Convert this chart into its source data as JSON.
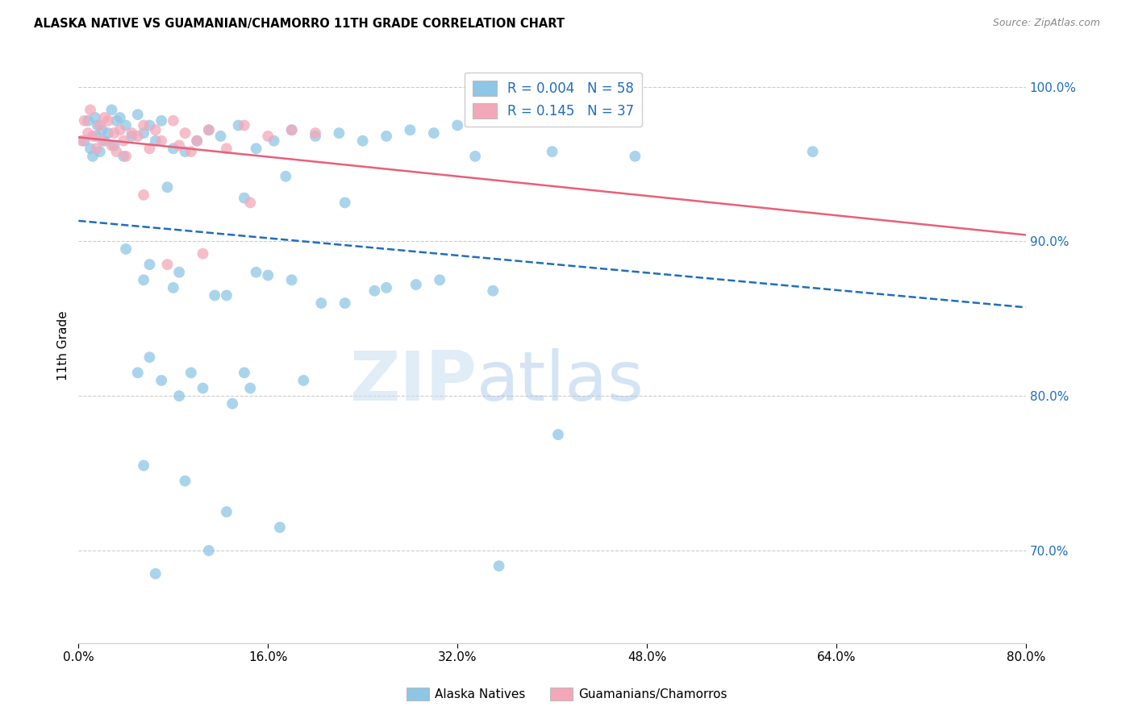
{
  "title": "ALASKA NATIVE VS GUAMANIAN/CHAMORRO 11TH GRADE CORRELATION CHART",
  "source": "Source: ZipAtlas.com",
  "ylabel": "11th Grade",
  "xlim": [
    0.0,
    80.0
  ],
  "ylim": [
    64.0,
    102.5
  ],
  "yticks": [
    70.0,
    80.0,
    90.0,
    100.0
  ],
  "ytick_labels": [
    "70.0%",
    "80.0%",
    "90.0%",
    "100.0%"
  ],
  "xticks": [
    0.0,
    16.0,
    32.0,
    48.0,
    64.0,
    80.0
  ],
  "legend_blue_label": "Alaska Natives",
  "legend_pink_label": "Guamanians/Chamorros",
  "R_blue": "0.004",
  "N_blue": "58",
  "R_pink": "0.145",
  "N_pink": "37",
  "blue_color": "#8ec6e6",
  "pink_color": "#f4a7b9",
  "blue_line_color": "#1f6dbf",
  "pink_line_color": "#e8607a",
  "background_color": "#ffffff",
  "watermark_zip": "ZIP",
  "watermark_atlas": "atlas",
  "blue_scatter_x": [
    0.5,
    0.8,
    1.0,
    1.2,
    1.4,
    1.5,
    1.6,
    1.8,
    2.0,
    2.2,
    2.5,
    2.8,
    3.0,
    3.2,
    3.5,
    3.8,
    4.0,
    4.5,
    5.0,
    5.5,
    6.0,
    6.5,
    7.0,
    8.0,
    9.0,
    10.0,
    11.0,
    12.0,
    13.5,
    15.0,
    16.5,
    18.0,
    20.0,
    22.0,
    24.0,
    26.0,
    28.0,
    30.0,
    32.0,
    7.5,
    14.0,
    17.5,
    22.5,
    33.5,
    40.0,
    47.0,
    5.5,
    8.5,
    12.5,
    16.0,
    20.5,
    25.0,
    28.5,
    62.0,
    6.0,
    9.5,
    14.5,
    19.0
  ],
  "blue_scatter_y": [
    96.5,
    97.8,
    96.0,
    95.5,
    98.0,
    96.8,
    97.5,
    95.8,
    97.2,
    96.5,
    97.0,
    98.5,
    96.2,
    97.8,
    98.0,
    95.5,
    97.5,
    96.8,
    98.2,
    97.0,
    97.5,
    96.5,
    97.8,
    96.0,
    95.8,
    96.5,
    97.2,
    96.8,
    97.5,
    96.0,
    96.5,
    97.2,
    96.8,
    97.0,
    96.5,
    96.8,
    97.2,
    97.0,
    97.5,
    93.5,
    92.8,
    94.2,
    92.5,
    95.5,
    95.8,
    95.5,
    87.5,
    88.0,
    86.5,
    87.8,
    86.0,
    86.8,
    87.2,
    95.8,
    82.5,
    81.5,
    80.5,
    81.0
  ],
  "blue_scatter_x2": [
    4.0,
    6.0,
    8.0,
    11.5,
    15.0,
    18.0,
    22.5,
    26.0,
    30.5,
    35.0,
    5.0,
    7.0,
    10.5,
    14.0,
    8.5,
    13.0,
    5.5,
    9.0,
    12.5,
    17.0,
    35.5,
    40.5,
    6.5,
    11.0
  ],
  "blue_scatter_y2": [
    89.5,
    88.5,
    87.0,
    86.5,
    88.0,
    87.5,
    86.0,
    87.0,
    87.5,
    86.8,
    81.5,
    81.0,
    80.5,
    81.5,
    80.0,
    79.5,
    75.5,
    74.5,
    72.5,
    71.5,
    69.0,
    77.5,
    68.5,
    70.0
  ],
  "pink_scatter_x": [
    0.3,
    0.5,
    0.8,
    1.0,
    1.2,
    1.5,
    1.8,
    2.0,
    2.2,
    2.5,
    2.8,
    3.0,
    3.2,
    3.5,
    3.8,
    4.0,
    4.5,
    5.0,
    5.5,
    6.0,
    6.5,
    7.0,
    8.0,
    8.5,
    9.0,
    9.5,
    10.0,
    11.0,
    12.5,
    14.0,
    16.0,
    18.0,
    20.0,
    7.5,
    10.5,
    14.5,
    5.5
  ],
  "pink_scatter_y": [
    96.5,
    97.8,
    97.0,
    98.5,
    96.8,
    96.0,
    97.5,
    96.5,
    98.0,
    97.8,
    96.2,
    97.0,
    95.8,
    97.2,
    96.5,
    95.5,
    97.0,
    96.8,
    97.5,
    96.0,
    97.2,
    96.5,
    97.8,
    96.2,
    97.0,
    95.8,
    96.5,
    97.2,
    96.0,
    97.5,
    96.8,
    97.2,
    97.0,
    88.5,
    89.2,
    92.5,
    93.0
  ]
}
